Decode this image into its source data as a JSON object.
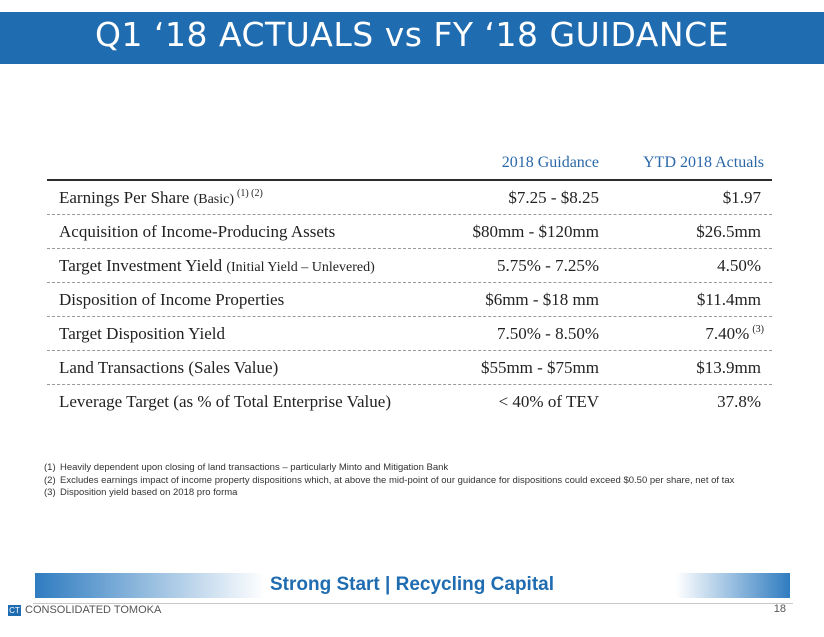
{
  "slide": {
    "title": "Q1 ‘18 ACTUALS vs FY ‘18 GUIDANCE",
    "table": {
      "headers": {
        "guidance": "2018 Guidance",
        "actuals": "YTD 2018 Actuals"
      },
      "rows": [
        {
          "label": "Earnings Per Share",
          "label_small": "(Basic)",
          "note": "(1) (2)",
          "guidance": "$7.25 - $8.25",
          "actual": "$1.97",
          "actual_note": ""
        },
        {
          "label": "Acquisition of Income-Producing Assets",
          "label_small": "",
          "note": "",
          "guidance": "$80mm - $120mm",
          "actual": "$26.5mm",
          "actual_note": ""
        },
        {
          "label": "Target Investment Yield",
          "label_small": "(Initial Yield – Unlevered)",
          "note": "",
          "guidance": "5.75% - 7.25%",
          "actual": "4.50%",
          "actual_note": ""
        },
        {
          "label": "Disposition of Income Properties",
          "label_small": "",
          "note": "",
          "guidance": "$6mm - $18 mm",
          "actual": "$11.4mm",
          "actual_note": ""
        },
        {
          "label": "Target Disposition Yield",
          "label_small": "",
          "note": "",
          "guidance": "7.50% - 8.50%",
          "actual": "7.40%",
          "actual_note": "(3)"
        },
        {
          "label": "Land Transactions (Sales Value)",
          "label_small": "",
          "note": "",
          "guidance": "$55mm - $75mm",
          "actual": "$13.9mm",
          "actual_note": ""
        },
        {
          "label": "Leverage Target (as % of Total Enterprise Value)",
          "label_small": "",
          "note": "",
          "guidance": "< 40% of TEV",
          "actual": "37.8%",
          "actual_note": ""
        }
      ]
    },
    "footnotes": [
      {
        "num": "(1)",
        "text": "Heavily dependent upon closing of land transactions – particularly Minto and Mitigation Bank"
      },
      {
        "num": "(2)",
        "text": "Excludes earnings impact of income property dispositions which, at above the mid-point of our guidance for dispositions could exceed $0.50 per share, net of tax"
      },
      {
        "num": "(3)",
        "text": "Disposition yield based on 2018 pro forma"
      }
    ],
    "tagline": "Strong Start | Recycling Capital",
    "company": "CONSOLIDATED TOMOKA",
    "logo_text": "CT",
    "page_number": "18"
  }
}
